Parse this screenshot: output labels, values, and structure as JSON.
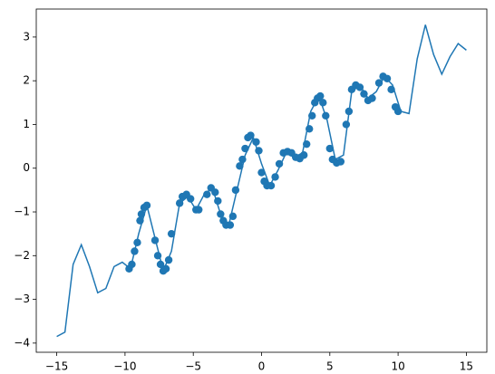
{
  "chart_data": {
    "type": "line",
    "xlim": [
      -16.5,
      16.5
    ],
    "ylim": [
      -4.21,
      3.64
    ],
    "xticks": [
      {
        "value": -15,
        "label": "−15"
      },
      {
        "value": -10,
        "label": "−10"
      },
      {
        "value": -5,
        "label": "−5"
      },
      0,
      5,
      10,
      15
    ],
    "yticks": [
      {
        "value": -4,
        "label": "−4"
      },
      {
        "value": -3,
        "label": "−3"
      },
      {
        "value": -2,
        "label": "−2"
      },
      {
        "value": -1,
        "label": "−1"
      },
      0,
      1,
      2,
      3
    ],
    "grid": false,
    "series": [
      {
        "type": "line",
        "color": "#1f77b4",
        "x": [
          -15,
          -14.4,
          -13.8,
          -13.2,
          -12.6,
          -12,
          -11.4,
          -10.8,
          -10.2,
          -9.6,
          -9,
          -8.4,
          -7.8,
          -7.2,
          -6.6,
          -6,
          -5.4,
          -4.8,
          -4.2,
          -3.6,
          -3,
          -2.4,
          -1.8,
          -1.2,
          -0.6,
          0,
          0.6,
          1.2,
          1.8,
          2.4,
          3,
          3.6,
          4.2,
          4.8,
          5.4,
          6,
          6.6,
          7.2,
          7.8,
          8.4,
          9,
          9.6,
          10.2,
          10.8,
          11.4,
          12,
          12.6,
          13.2,
          13.8,
          14.4,
          15
        ],
        "values": [
          -3.85,
          -3.75,
          -2.2,
          -1.75,
          -2.25,
          -2.85,
          -2.75,
          -2.25,
          -2.15,
          -2.3,
          -1.5,
          -0.85,
          -1.6,
          -2.35,
          -1.9,
          -0.8,
          -0.65,
          -0.95,
          -0.6,
          -0.45,
          -1.05,
          -1.3,
          -0.5,
          0.3,
          0.7,
          0.1,
          -0.4,
          -0.05,
          0.35,
          0.25,
          0.35,
          1.3,
          1.65,
          1.1,
          0.2,
          0.3,
          1.75,
          1.9,
          1.6,
          1.75,
          2.1,
          1.9,
          1.3,
          1.25,
          2.5,
          3.28,
          2.6,
          2.15,
          2.55,
          2.85,
          2.7
        ]
      },
      {
        "type": "scatter",
        "color": "#1f77b4",
        "x": [
          -9.7,
          -9.5,
          -9.3,
          -9.1,
          -8.9,
          -8.8,
          -8.6,
          -8.4,
          -7.8,
          -7.6,
          -7.4,
          -7.2,
          -7.0,
          -6.8,
          -6.6,
          -6.0,
          -5.8,
          -5.5,
          -5.2,
          -4.8,
          -4.6,
          -4.0,
          -3.7,
          -3.4,
          -3.2,
          -3.0,
          -2.8,
          -2.6,
          -2.3,
          -2.1,
          -1.9,
          -1.6,
          -1.4,
          -1.2,
          -1.0,
          -0.8,
          -0.4,
          -0.2,
          0.0,
          0.2,
          0.4,
          0.7,
          1.0,
          1.3,
          1.6,
          1.9,
          2.2,
          2.5,
          2.8,
          3.1,
          3.3,
          3.5,
          3.7,
          3.9,
          4.1,
          4.3,
          4.5,
          4.7,
          5.0,
          5.2,
          5.5,
          5.8,
          6.2,
          6.4,
          6.6,
          6.9,
          7.2,
          7.5,
          7.8,
          8.1,
          8.6,
          8.9,
          9.2,
          9.5,
          9.8,
          10.0
        ],
        "values": [
          -2.3,
          -2.2,
          -1.9,
          -1.7,
          -1.2,
          -1.05,
          -0.9,
          -0.85,
          -1.65,
          -2.0,
          -2.2,
          -2.35,
          -2.3,
          -2.1,
          -1.5,
          -0.8,
          -0.65,
          -0.6,
          -0.7,
          -0.95,
          -0.95,
          -0.6,
          -0.45,
          -0.55,
          -0.75,
          -1.05,
          -1.2,
          -1.3,
          -1.3,
          -1.1,
          -0.5,
          0.05,
          0.2,
          0.45,
          0.7,
          0.75,
          0.6,
          0.4,
          -0.1,
          -0.3,
          -0.4,
          -0.4,
          -0.2,
          0.1,
          0.35,
          0.38,
          0.35,
          0.25,
          0.22,
          0.3,
          0.55,
          0.9,
          1.2,
          1.5,
          1.6,
          1.65,
          1.5,
          1.2,
          0.45,
          0.2,
          0.12,
          0.15,
          1.0,
          1.3,
          1.8,
          1.9,
          1.85,
          1.7,
          1.55,
          1.6,
          1.95,
          2.1,
          2.05,
          1.8,
          1.4,
          1.3
        ]
      }
    ]
  }
}
